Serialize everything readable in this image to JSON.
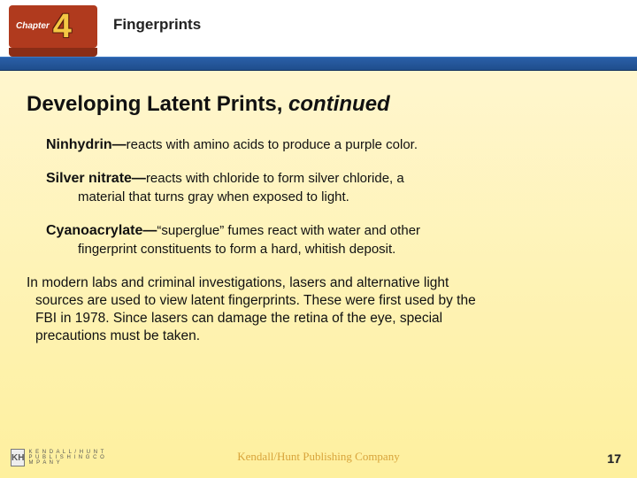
{
  "chapter": {
    "label": "Chapter",
    "number": "4",
    "title": "Fingerprints"
  },
  "slide": {
    "title_main": "Developing Latent Prints, ",
    "title_continued": "continued"
  },
  "methods": [
    {
      "name": "Ninhydrin—",
      "desc_line1": "reacts with amino acids to produce a purple color.",
      "desc_cont": ""
    },
    {
      "name": "Silver nitrate—",
      "desc_line1": "reacts with chloride to form silver chloride, a",
      "desc_cont": "material that turns gray when exposed to light."
    },
    {
      "name": "Cyanoacrylate—",
      "desc_line1": "“superglue” fumes react with water and other",
      "desc_cont": "fingerprint constituents to form a hard, whitish deposit."
    }
  ],
  "body": {
    "line1": "In modern labs and criminal investigations, lasers and alternative light",
    "line2": "sources are used to view latent fingerprints. These were first used by the",
    "line3": "FBI in 1978. Since lasers can damage the retina of the eye, special",
    "line4": "precautions must be taken."
  },
  "footer": {
    "publisher": "Kendall/Hunt Publishing Company",
    "page": "17",
    "logo_mark": "KH",
    "logo_text_top": "K E N D A L L / H U N T",
    "logo_text_bot": "P U B L I S H I N G  C O M P A N Y"
  },
  "colors": {
    "band_blue_top": "#2a5fa8",
    "band_blue_bot": "#1f4e8c",
    "badge_bg": "#b03a1e",
    "badge_num": "#f4c844",
    "bg_top": "#fff7d6",
    "bg_bot": "#fef09e",
    "footer_text": "#d8a33a"
  }
}
